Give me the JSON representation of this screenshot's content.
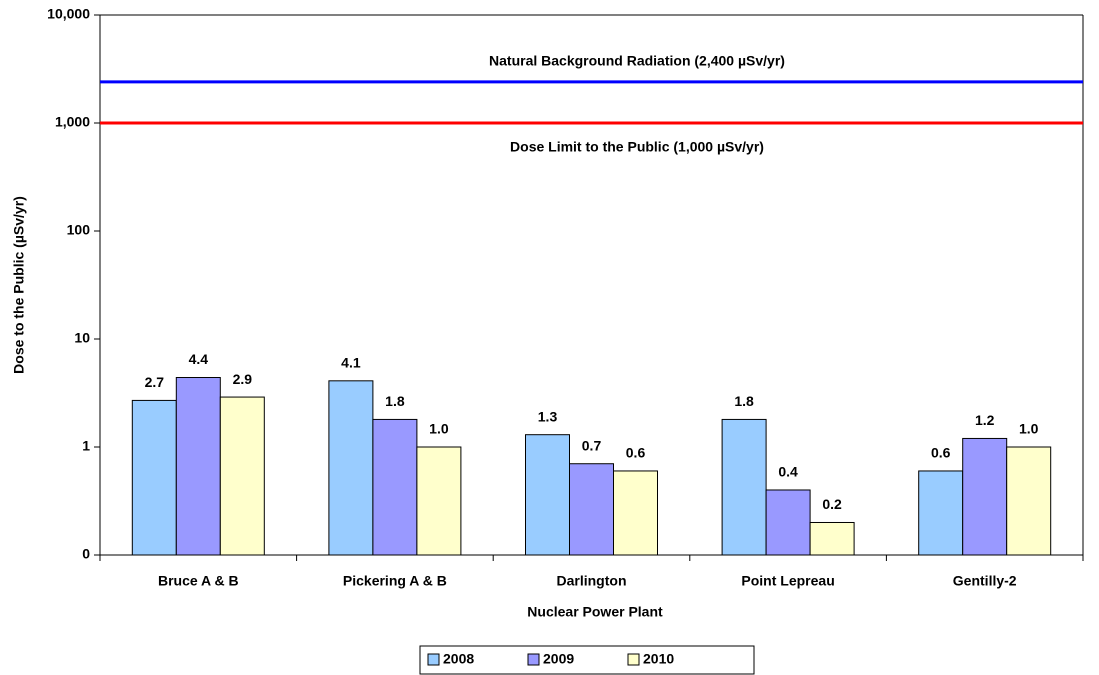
{
  "chart_data": {
    "type": "bar",
    "x_label": "Nuclear Power Plant",
    "y_label": "Dose to the Public (µSv/yr)",
    "categories": [
      "Bruce A & B",
      "Pickering A & B",
      "Darlington",
      "Point Lepreau",
      "Gentilly-2"
    ],
    "series": [
      {
        "name": "2008",
        "color": "#99ccff",
        "values": [
          2.7,
          4.1,
          1.3,
          1.8,
          0.6
        ],
        "value_labels": [
          "2.7",
          "4.1",
          "1.3",
          "1.8",
          "0.6"
        ]
      },
      {
        "name": "2009",
        "color": "#9999ff",
        "values": [
          4.4,
          1.8,
          0.7,
          0.4,
          1.2
        ],
        "value_labels": [
          "4.4",
          "1.8",
          "0.7",
          "0.4",
          "1.2"
        ]
      },
      {
        "name": "2010",
        "color": "#ffffcc",
        "values": [
          2.9,
          1.0,
          0.6,
          0.2,
          1.0
        ],
        "value_labels": [
          "2.9",
          "1.0",
          "0.6",
          "0.2",
          "1.0"
        ]
      }
    ],
    "log_scale": true,
    "ylim": [
      0.1,
      10000
    ],
    "yticks": [
      {
        "value": 0.1,
        "label": "0"
      },
      1,
      10,
      100,
      {
        "value": 1000,
        "label": "1,000"
      },
      {
        "value": 10000,
        "label": "10,000"
      }
    ],
    "reference_lines": [
      {
        "value": 2400,
        "label": "Natural Background Radiation (2,400 µSv/yr)",
        "color": "#0000ff"
      },
      {
        "value": 1000,
        "label": "Dose Limit to the Public (1,000 µSv/yr)",
        "color": "#ff0000"
      }
    ],
    "legend": "bottom"
  }
}
